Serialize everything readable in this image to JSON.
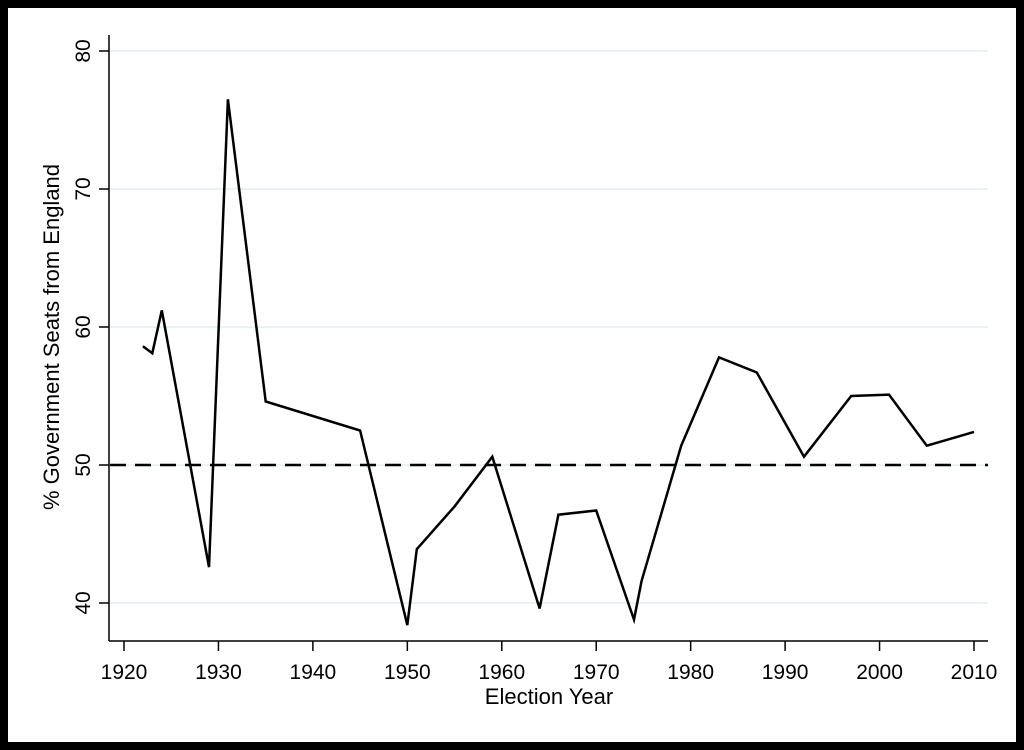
{
  "chart_data": {
    "type": "line",
    "title": "",
    "xlabel": "Election Year",
    "ylabel": "% Government Seats from England",
    "xlim": [
      1918.5,
      2011.5
    ],
    "ylim": [
      38,
      81
    ],
    "xticks": [
      1920,
      1930,
      1940,
      1950,
      1960,
      1970,
      1980,
      1990,
      2000,
      2010
    ],
    "yticks": [
      40,
      50,
      60,
      70,
      80
    ],
    "grid": {
      "y": true,
      "x": false,
      "color": "#eaf2f3"
    },
    "legend": null,
    "reference_line": {
      "y": 50,
      "style": "dashed",
      "color": "#000000"
    },
    "series": [
      {
        "name": "% Government Seats from England",
        "color": "#000000",
        "x": [
          1922,
          1923,
          1924,
          1929,
          1931,
          1935,
          1945,
          1950,
          1951,
          1955,
          1959,
          1964,
          1966,
          1970,
          1974,
          1974.8,
          1979,
          1983,
          1987,
          1992,
          1997,
          2001,
          2005,
          2010
        ],
        "values": [
          58.6,
          58.1,
          61.2,
          42.6,
          76.5,
          54.6,
          52.5,
          38.4,
          43.9,
          47.0,
          50.6,
          39.6,
          46.4,
          46.7,
          38.8,
          41.6,
          51.4,
          57.8,
          56.7,
          50.6,
          55.0,
          55.1,
          51.4,
          52.4
        ]
      }
    ]
  }
}
